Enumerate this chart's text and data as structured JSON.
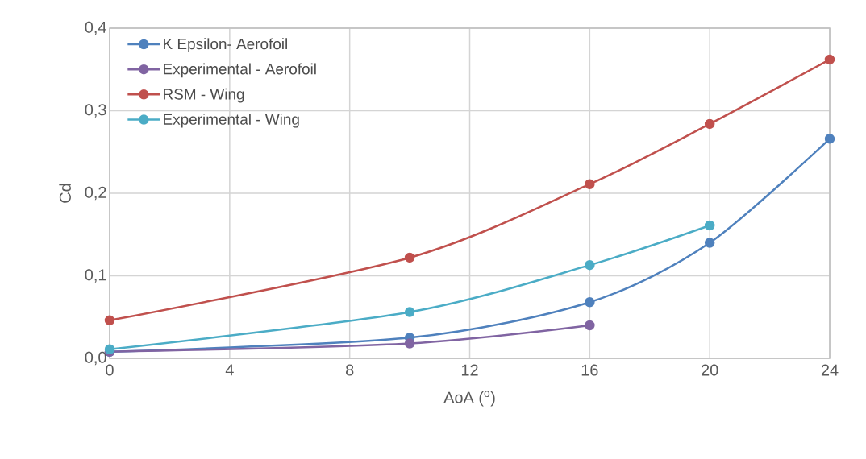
{
  "chart_data": {
    "type": "line",
    "xlabel": "AoA ($^{o}$)",
    "ylabel": "Cd",
    "xlim": [
      0,
      24
    ],
    "xticks": [
      0,
      4,
      8,
      12,
      16,
      20,
      24
    ],
    "ylim": [
      0,
      0.4
    ],
    "yticks": [
      {
        "value": 0,
        "label": "0,0"
      },
      {
        "value": 0.1,
        "label": "0,1"
      },
      {
        "value": 0.2,
        "label": "0,2"
      },
      {
        "value": 0.3,
        "label": "0,3"
      },
      {
        "value": 0.4,
        "label": "0,4"
      }
    ],
    "grid": true,
    "legend": "top left",
    "marker": "circle",
    "line_style": "solid",
    "series": [
      {
        "name": "K Epsilon- Aerofoil",
        "color": "#4f81bd",
        "x": [
          0,
          10,
          16,
          20,
          24
        ],
        "values": [
          0.008,
          0.025,
          0.068,
          0.14,
          0.266
        ]
      },
      {
        "name": "Experimental - Aerofoil",
        "color": "#8064a2",
        "x": [
          0,
          10,
          16
        ],
        "values": [
          0.008,
          0.018,
          0.04
        ]
      },
      {
        "name": "RSM - Wing",
        "color": "#c0504d",
        "x": [
          0,
          10,
          16,
          20,
          24
        ],
        "values": [
          0.046,
          0.122,
          0.211,
          0.284,
          0.362
        ]
      },
      {
        "name": "Experimental - Wing",
        "color": "#4bacc6",
        "x": [
          0,
          10,
          16,
          20
        ],
        "values": [
          0.011,
          0.056,
          0.113,
          0.161
        ]
      }
    ]
  }
}
